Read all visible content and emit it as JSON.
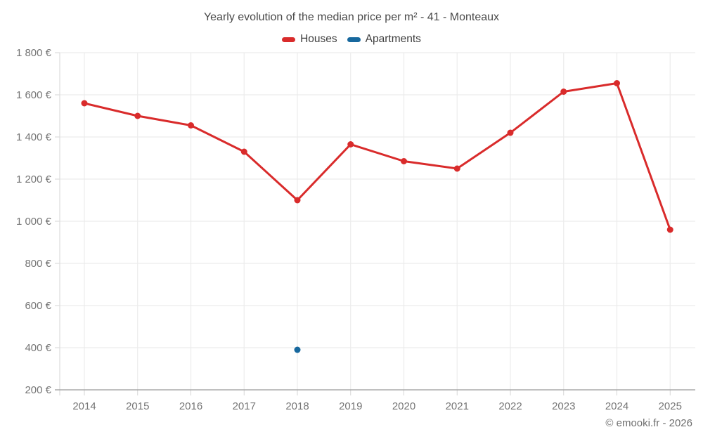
{
  "header": {
    "title": "Yearly evolution of the median price per m² - 41 - Monteaux"
  },
  "legend": [
    {
      "label": "Houses",
      "color": "#d92b2b"
    },
    {
      "label": "Apartments",
      "color": "#17689e"
    }
  ],
  "footer": {
    "credit": "© emooki.fr - 2026"
  },
  "chart_data": {
    "type": "line",
    "title": "Yearly evolution of the median price per m² - 41 - Monteaux",
    "x": [
      2014,
      2015,
      2016,
      2017,
      2018,
      2019,
      2020,
      2021,
      2022,
      2023,
      2024,
      2025
    ],
    "series": [
      {
        "name": "Houses",
        "color": "#d92b2b",
        "values": [
          1560,
          1500,
          1455,
          1330,
          1100,
          1365,
          1285,
          1250,
          1420,
          1615,
          1655,
          960
        ]
      },
      {
        "name": "Apartments",
        "color": "#17689e",
        "values": [
          null,
          null,
          null,
          null,
          390,
          null,
          null,
          null,
          null,
          null,
          null,
          null
        ]
      }
    ],
    "xlabel": "",
    "ylabel": "",
    "ylim": [
      200,
      1800
    ],
    "yticks": [
      200,
      400,
      600,
      800,
      1000,
      1200,
      1400,
      1600,
      1800
    ],
    "ytick_labels": [
      "200 €",
      "400 €",
      "600 €",
      "800 €",
      "1 000 €",
      "1 200 €",
      "1 400 €",
      "1 600 €",
      "1 800 €"
    ],
    "grid": true,
    "legend_position": "top",
    "currency": "€"
  }
}
